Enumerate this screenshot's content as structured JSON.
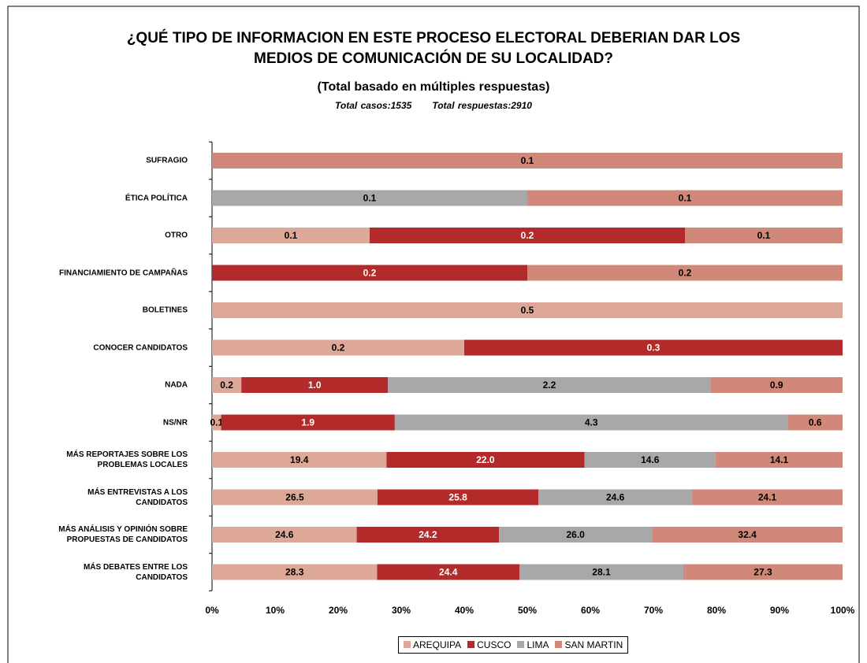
{
  "chart_data": {
    "type": "bar",
    "orientation": "horizontal",
    "stack": "percent",
    "title": "¿QUÉ TIPO DE INFORMACION EN ESTE PROCESO ELECTORAL DEBERIAN DAR LOS\nMEDIOS DE COMUNICACIÓN DE SU LOCALIDAD?",
    "subtitle": "(Total basado en múltiples respuestas)",
    "annotations": [
      "Total casos:1535",
      "Total respuestas:2910"
    ],
    "categories": [
      "SUFRAGIO",
      "ÉTICA POLÍTICA",
      "OTRO",
      "FINANCIAMIENTO DE CAMPAÑAS",
      "BOLETINES",
      "CONOCER CANDIDATOS",
      "NADA",
      "NS/NR",
      "MÁS REPORTAJES SOBRE LOS\nPROBLEMAS LOCALES",
      "MÁS ENTREVISTAS A LOS\nCANDIDATOS",
      "MÁS ANÁLISIS Y OPINIÓN SOBRE\nPROPUESTAS DE CANDIDATOS",
      "MÁS DEBATES ENTRE LOS\nCANDIDATOS"
    ],
    "series": [
      {
        "name": "AREQUIPA",
        "color": "#dea898",
        "label_color": "#000000",
        "values": [
          null,
          null,
          0.1,
          null,
          0.5,
          0.2,
          0.2,
          0.1,
          19.4,
          26.5,
          24.6,
          28.3
        ],
        "value_labels": [
          null,
          null,
          "0.1",
          null,
          "0.5",
          "0.2",
          "0.2",
          "0.1",
          "19.4",
          "26.5",
          "24.6",
          "28.3"
        ]
      },
      {
        "name": "CUSCO",
        "color": "#b22a2a",
        "label_color": "#ffffff",
        "values": [
          null,
          null,
          0.2,
          0.2,
          null,
          0.3,
          1.0,
          1.9,
          22.0,
          25.8,
          24.2,
          24.4
        ],
        "value_labels": [
          null,
          null,
          "0.2",
          "0.2",
          null,
          "0.3",
          "1.0",
          "1.9",
          "22.0",
          "25.8",
          "24.2",
          "24.4"
        ]
      },
      {
        "name": "LIMA",
        "color": "#a8a8a8",
        "label_color": "#000000",
        "values": [
          null,
          0.1,
          null,
          null,
          null,
          null,
          2.2,
          4.3,
          14.6,
          24.6,
          26.0,
          28.1
        ],
        "value_labels": [
          null,
          "0.1",
          null,
          null,
          null,
          null,
          "2.2",
          "4.3",
          "14.6",
          "24.6",
          "26.0",
          "28.1"
        ]
      },
      {
        "name": "SAN MARTIN",
        "color": "#d08878",
        "label_color": "#000000",
        "values": [
          0.1,
          0.1,
          0.1,
          0.2,
          null,
          null,
          0.9,
          0.6,
          14.1,
          24.1,
          32.4,
          27.3
        ],
        "value_labels": [
          "0.1",
          "0.1",
          "0.1",
          "0.2",
          null,
          null,
          "0.9",
          "0.6",
          "14.1",
          "24.1",
          "32.4",
          "27.3"
        ]
      }
    ],
    "xlim": [
      0,
      100
    ],
    "xticks": [
      {
        "value": 0,
        "label": "0%"
      },
      {
        "value": 10,
        "label": "10%"
      },
      {
        "value": 20,
        "label": "20%"
      },
      {
        "value": 30,
        "label": "30%"
      },
      {
        "value": 40,
        "label": "40%"
      },
      {
        "value": 50,
        "label": "50%"
      },
      {
        "value": 60,
        "label": "60%"
      },
      {
        "value": 70,
        "label": "70%"
      },
      {
        "value": 80,
        "label": "80%"
      },
      {
        "value": 90,
        "label": "90%"
      },
      {
        "value": 100,
        "label": "100%"
      }
    ],
    "grid": false,
    "legend": "bottom"
  }
}
